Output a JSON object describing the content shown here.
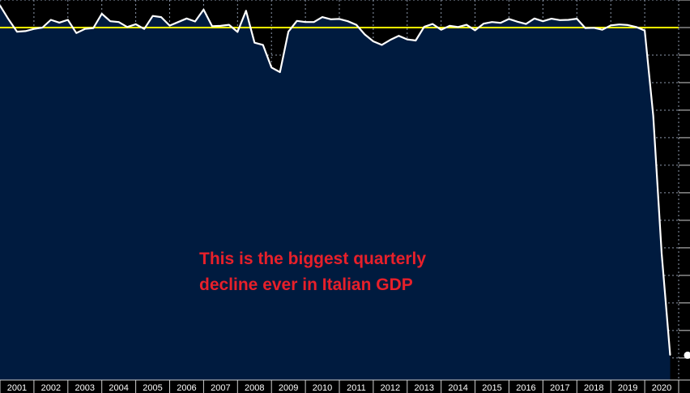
{
  "chart_data": {
    "type": "area",
    "title": "",
    "xlabel": "",
    "ylabel": "",
    "x_tick_labels": [
      "2001",
      "2002",
      "2003",
      "2004",
      "2005",
      "2006",
      "2007",
      "2008",
      "2009",
      "2010",
      "2011",
      "2012",
      "2013",
      "2014",
      "2015",
      "2016",
      "2017",
      "2018",
      "2019",
      "2020"
    ],
    "x": [
      2000.5,
      2000.75,
      2001.0,
      2001.25,
      2001.5,
      2001.75,
      2002.0,
      2002.25,
      2002.5,
      2002.75,
      2003.0,
      2003.25,
      2003.5,
      2003.75,
      2004.0,
      2004.25,
      2004.5,
      2004.75,
      2005.0,
      2005.25,
      2005.5,
      2005.75,
      2006.0,
      2006.25,
      2006.5,
      2006.75,
      2007.0,
      2007.25,
      2007.5,
      2007.75,
      2008.0,
      2008.25,
      2008.5,
      2008.75,
      2009.0,
      2009.25,
      2009.5,
      2009.75,
      2010.0,
      2010.25,
      2010.5,
      2010.75,
      2011.0,
      2011.25,
      2011.5,
      2011.75,
      2012.0,
      2012.25,
      2012.5,
      2012.75,
      2013.0,
      2013.25,
      2013.5,
      2013.75,
      2014.0,
      2014.25,
      2014.5,
      2014.75,
      2015.0,
      2015.25,
      2015.5,
      2015.75,
      2016.0,
      2016.25,
      2016.5,
      2016.75,
      2017.0,
      2017.25,
      2017.5,
      2017.75,
      2018.0,
      2018.25,
      2018.5,
      2018.75,
      2019.0,
      2019.25,
      2019.5,
      2019.75,
      2020.0,
      2020.25
    ],
    "series": [
      {
        "values": [
          0.8,
          0.3,
          -0.15,
          -0.13,
          -0.05,
          0.0,
          0.28,
          0.18,
          0.28,
          -0.2,
          -0.05,
          -0.02,
          0.5,
          0.23,
          0.2,
          0.02,
          0.12,
          -0.05,
          0.42,
          0.38,
          0.07,
          0.2,
          0.33,
          0.22,
          0.65,
          0.05,
          0.06,
          0.1,
          -0.16,
          0.61,
          -0.55,
          -0.63,
          -1.45,
          -1.62,
          -0.15,
          0.24,
          0.2,
          0.2,
          0.38,
          0.3,
          0.31,
          0.23,
          0.1,
          -0.25,
          -0.5,
          -0.63,
          -0.45,
          -0.3,
          -0.43,
          -0.47,
          0.03,
          0.13,
          -0.08,
          0.06,
          0.02,
          0.1,
          -0.1,
          0.14,
          0.2,
          0.17,
          0.31,
          0.21,
          0.13,
          0.33,
          0.23,
          0.32,
          0.27,
          0.28,
          0.32,
          -0.02,
          -0.01,
          -0.08,
          0.08,
          0.11,
          0.09,
          0.02,
          -0.11,
          -3.2,
          -8.2,
          -11.9
        ]
      }
    ],
    "reference_line_value": 0.0,
    "xlim": [
      2000.5,
      2020.5
    ],
    "ylim": [
      -12.8,
      1.0
    ],
    "grid": true,
    "colors": {
      "background": "#000000",
      "area_fill": "#001b3f",
      "line": "#ffffff",
      "reference_line": "#ffff00",
      "grid": "#8e9aad",
      "axis_text": "#ffffff",
      "annotation": "#e8202a"
    }
  },
  "annotation": {
    "line1": "This is the biggest quarterly",
    "line2": "decline ever in Italian GDP"
  }
}
